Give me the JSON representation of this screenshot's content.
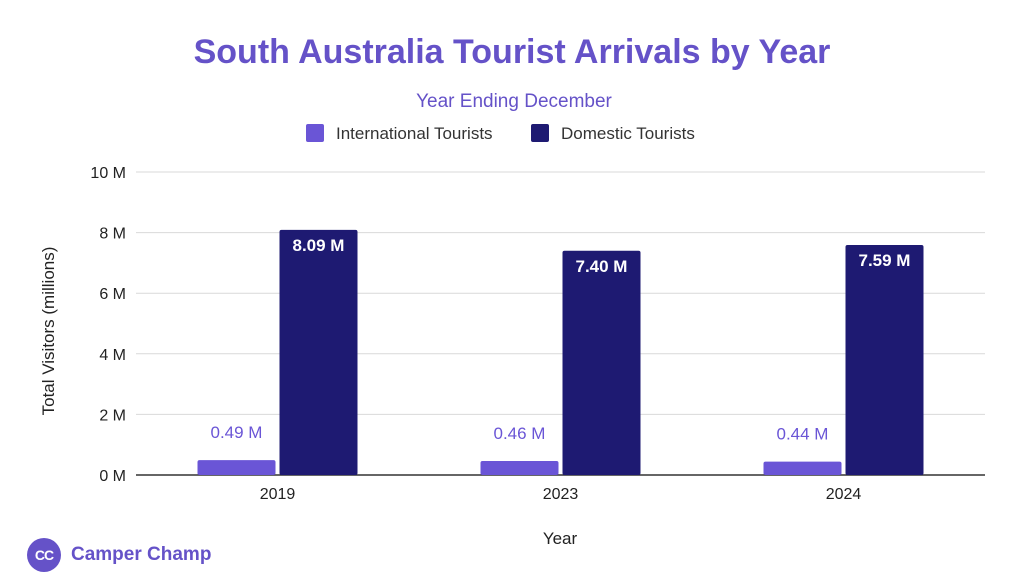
{
  "colors": {
    "accent": "#6552c8",
    "international": "#6a55d6",
    "domestic": "#1e1a72",
    "grid": "#d9d9d9",
    "axis": "#333333"
  },
  "chart_data": {
    "type": "bar",
    "title": "South Australia Tourist Arrivals by Year",
    "subtitle": "Year Ending December",
    "xlabel": "Year",
    "ylabel": "Total Visitors (millions)",
    "categories": [
      "2019",
      "2023",
      "2024"
    ],
    "series": [
      {
        "name": "International Tourists",
        "values": [
          0.49,
          0.46,
          0.44
        ],
        "labels": [
          "0.49 M",
          "0.46 M",
          "0.44 M"
        ]
      },
      {
        "name": "Domestic Tourists",
        "values": [
          8.09,
          7.4,
          7.59
        ],
        "labels": [
          "8.09 M",
          "7.40 M",
          "7.59 M"
        ]
      }
    ],
    "ylim": [
      0,
      10
    ],
    "yticks": [
      0,
      2,
      4,
      6,
      8,
      10
    ],
    "ytick_labels": [
      "0 M",
      "2 M",
      "4 M",
      "6 M",
      "8 M",
      "10 M"
    ],
    "grid": true,
    "legend_position": "top-center"
  },
  "branding": {
    "logo_text": "CC",
    "name": "Camper Champ",
    "logo_icon": "camper-champ-logo-icon"
  }
}
